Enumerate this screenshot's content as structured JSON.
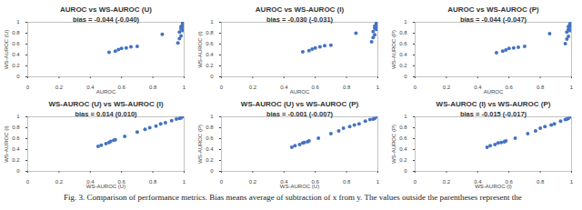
{
  "chart_data": [
    {
      "type": "scatter",
      "title": "AUROC vs WS-AUROC (U)",
      "annotation": "bias = -0.044 (-0.040)",
      "x_label": "AUROC",
      "y_label": "WS-AUROC (U)",
      "color": "#4472c4",
      "xlim": [
        0,
        1
      ],
      "ylim": [
        0,
        1
      ],
      "xticks": [
        0,
        0.2,
        0.4,
        0.6,
        0.8,
        1
      ],
      "yticks": [
        0,
        0.2,
        0.4,
        0.6,
        0.8,
        1
      ],
      "x": [
        0.52,
        0.56,
        0.58,
        0.6,
        0.63,
        0.66,
        0.7,
        0.86,
        0.96,
        0.97,
        0.97,
        0.98,
        0.98,
        0.98,
        0.99,
        0.99,
        0.99,
        1.0,
        1.0,
        1.0
      ],
      "values": [
        0.45,
        0.47,
        0.5,
        0.52,
        0.53,
        0.55,
        0.56,
        0.78,
        0.62,
        0.7,
        0.82,
        0.75,
        0.88,
        0.92,
        0.85,
        0.95,
        0.98,
        0.9,
        0.97,
        1.0
      ]
    },
    {
      "type": "scatter",
      "title": "AUROC vs WS-AUROC (I)",
      "annotation": "bias = -0.030 (-0.031)",
      "x_label": "AUROC",
      "y_label": "WS-AUROC (I)",
      "color": "#4472c4",
      "xlim": [
        0,
        1
      ],
      "ylim": [
        0,
        1
      ],
      "xticks": [
        0,
        0.2,
        0.4,
        0.6,
        0.8,
        1
      ],
      "yticks": [
        0,
        0.2,
        0.4,
        0.6,
        0.8,
        1
      ],
      "x": [
        0.52,
        0.56,
        0.58,
        0.6,
        0.63,
        0.66,
        0.7,
        0.86,
        0.96,
        0.97,
        0.97,
        0.98,
        0.98,
        0.98,
        0.99,
        0.99,
        0.99,
        1.0,
        1.0,
        1.0
      ],
      "values": [
        0.46,
        0.48,
        0.51,
        0.53,
        0.55,
        0.57,
        0.58,
        0.8,
        0.64,
        0.72,
        0.83,
        0.77,
        0.89,
        0.93,
        0.87,
        0.96,
        0.98,
        0.91,
        0.97,
        1.0
      ]
    },
    {
      "type": "scatter",
      "title": "AUROC vs WS-AUROC (P)",
      "annotation": "bias = -0.044 (-0.047)",
      "x_label": "AUROC",
      "y_label": "WS-AUROC (P)",
      "color": "#4472c4",
      "xlim": [
        0,
        1
      ],
      "ylim": [
        0,
        1
      ],
      "xticks": [
        0,
        0.2,
        0.4,
        0.6,
        0.8,
        1
      ],
      "yticks": [
        0,
        0.2,
        0.4,
        0.6,
        0.8,
        1
      ],
      "x": [
        0.52,
        0.56,
        0.58,
        0.6,
        0.63,
        0.66,
        0.7,
        0.86,
        0.96,
        0.97,
        0.97,
        0.98,
        0.98,
        0.98,
        0.99,
        0.99,
        0.99,
        1.0,
        1.0,
        1.0
      ],
      "values": [
        0.44,
        0.47,
        0.49,
        0.52,
        0.53,
        0.54,
        0.56,
        0.79,
        0.61,
        0.69,
        0.82,
        0.74,
        0.87,
        0.92,
        0.85,
        0.95,
        0.97,
        0.9,
        0.96,
        1.0
      ]
    },
    {
      "type": "scatter",
      "title": "WS-AUROC (U) vs WS-AUROC (I)",
      "annotation": "bias = 0.014 (0.010)",
      "x_label": "WS-AUROC (U)",
      "y_label": "WS-AUROC (I)",
      "color": "#4472c4",
      "xlim": [
        0,
        1
      ],
      "ylim": [
        0,
        1
      ],
      "xticks": [
        0,
        0.2,
        0.4,
        0.6,
        0.8,
        1
      ],
      "yticks": [
        0,
        0.2,
        0.4,
        0.6,
        0.8,
        1
      ],
      "x": [
        0.45,
        0.47,
        0.5,
        0.52,
        0.53,
        0.55,
        0.56,
        0.62,
        0.7,
        0.75,
        0.78,
        0.82,
        0.85,
        0.88,
        0.92,
        0.95,
        0.97,
        0.98,
        1.0
      ],
      "values": [
        0.46,
        0.48,
        0.51,
        0.53,
        0.55,
        0.57,
        0.58,
        0.64,
        0.72,
        0.77,
        0.8,
        0.83,
        0.87,
        0.89,
        0.93,
        0.96,
        0.97,
        0.98,
        1.0
      ]
    },
    {
      "type": "scatter",
      "title": "WS-AUROC (U) vs WS-AUROC (P)",
      "annotation": "bias = -0.001 (-0.007)",
      "x_label": "WS-AUROC (U)",
      "y_label": "WS-AUROC (P)",
      "color": "#4472c4",
      "xlim": [
        0,
        1
      ],
      "ylim": [
        0,
        1
      ],
      "xticks": [
        0,
        0.2,
        0.4,
        0.6,
        0.8,
        1
      ],
      "yticks": [
        0,
        0.2,
        0.4,
        0.6,
        0.8,
        1
      ],
      "x": [
        0.45,
        0.47,
        0.5,
        0.52,
        0.53,
        0.55,
        0.56,
        0.62,
        0.7,
        0.75,
        0.78,
        0.82,
        0.85,
        0.88,
        0.92,
        0.95,
        0.97,
        0.98,
        1.0
      ],
      "values": [
        0.44,
        0.47,
        0.49,
        0.52,
        0.53,
        0.54,
        0.56,
        0.61,
        0.69,
        0.74,
        0.79,
        0.82,
        0.85,
        0.87,
        0.92,
        0.95,
        0.96,
        0.97,
        1.0
      ]
    },
    {
      "type": "scatter",
      "title": "WS-AUROC (I) vs WS-AUROC (P)",
      "annotation": "bias = -0.015 (-0.017)",
      "x_label": "WS-AUROC (I)",
      "y_label": "WS-AUROC (P)",
      "color": "#4472c4",
      "xlim": [
        0,
        1
      ],
      "ylim": [
        0,
        1
      ],
      "xticks": [
        0,
        0.2,
        0.4,
        0.6,
        0.8,
        1
      ],
      "yticks": [
        0,
        0.2,
        0.4,
        0.6,
        0.8,
        1
      ],
      "x": [
        0.46,
        0.48,
        0.51,
        0.53,
        0.55,
        0.57,
        0.58,
        0.64,
        0.72,
        0.77,
        0.8,
        0.83,
        0.87,
        0.89,
        0.93,
        0.96,
        0.97,
        0.98,
        1.0
      ],
      "values": [
        0.44,
        0.47,
        0.49,
        0.52,
        0.53,
        0.54,
        0.56,
        0.61,
        0.69,
        0.74,
        0.79,
        0.82,
        0.85,
        0.87,
        0.92,
        0.95,
        0.96,
        0.97,
        1.0
      ]
    }
  ],
  "caption": "Fig. 3. Comparison of performance metrics. Bias means average of subtraction of x from y. The values outside the parentheses represent the"
}
